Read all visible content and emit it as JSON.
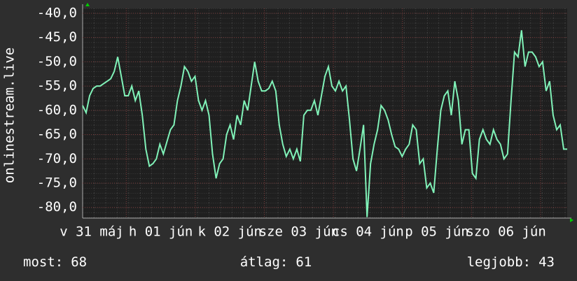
{
  "chart_data": {
    "type": "line",
    "y_label": "onlinestream.live",
    "x_labels": [
      "v 31 máj",
      "h 01 jún",
      "k 02 jún",
      "sze 03 jún",
      "cs 04 jún",
      "p 05 jún",
      "szo 06 jún"
    ],
    "series": [
      {
        "color": "#80f2b8",
        "values": [
          -59,
          -60.5,
          -57,
          -55.5,
          -55,
          -55,
          -54.5,
          -54,
          -53.5,
          -52,
          -49,
          -53,
          -57,
          -57,
          -55,
          -58,
          -56,
          -61,
          -68,
          -71.5,
          -71,
          -70,
          -67,
          -69,
          -66.5,
          -64,
          -63,
          -58,
          -55,
          -51,
          -52,
          -54,
          -53,
          -58,
          -60,
          -58,
          -61,
          -69,
          -74,
          -71,
          -70,
          -65,
          -63,
          -66,
          -61,
          -63,
          -58,
          -60,
          -55,
          -50,
          -54,
          -56,
          -56,
          -55.5,
          -54,
          -56,
          -63,
          -67,
          -69.5,
          -68,
          -70,
          -68,
          -70.5,
          -61,
          -60,
          -60,
          -58,
          -61,
          -57,
          -53,
          -51,
          -55,
          -56,
          -54,
          -56,
          -55,
          -62,
          -70,
          -72.5,
          -68,
          -63,
          -82,
          -71,
          -67,
          -64,
          -59,
          -60,
          -62,
          -65,
          -67.5,
          -68,
          -69.5,
          -68,
          -67,
          -63,
          -64,
          -71,
          -70,
          -76,
          -75,
          -77,
          -68,
          -60,
          -57,
          -56,
          -61,
          -54,
          -58,
          -67,
          -64,
          -64,
          -73,
          -74,
          -66,
          -64,
          -66,
          -67,
          -64,
          -66,
          -67,
          -70,
          -69,
          -58,
          -48,
          -49,
          -43.5,
          -51,
          -48,
          -48,
          -49,
          -51,
          -50,
          -56,
          -54,
          -61,
          -64,
          -63,
          -68,
          -68
        ]
      }
    ],
    "ylim": [
      -82.2,
      -39
    ],
    "yticks": [
      {
        "value": -40,
        "label": "-40,0"
      },
      {
        "value": -45,
        "label": "-45,0"
      },
      {
        "value": -50,
        "label": "-50,0"
      },
      {
        "value": -55,
        "label": "-55,0"
      },
      {
        "value": -60,
        "label": "-60,0"
      },
      {
        "value": -65,
        "label": "-65,0"
      },
      {
        "value": -70,
        "label": "-70,0"
      },
      {
        "value": -75,
        "label": "-75,0"
      },
      {
        "value": -80,
        "label": "-80,0"
      }
    ],
    "grid": true,
    "stats": [
      {
        "label": "most:",
        "value": 68
      },
      {
        "label": "átlag:",
        "value": 61
      },
      {
        "label": "legjobb:",
        "value": 43
      }
    ]
  }
}
